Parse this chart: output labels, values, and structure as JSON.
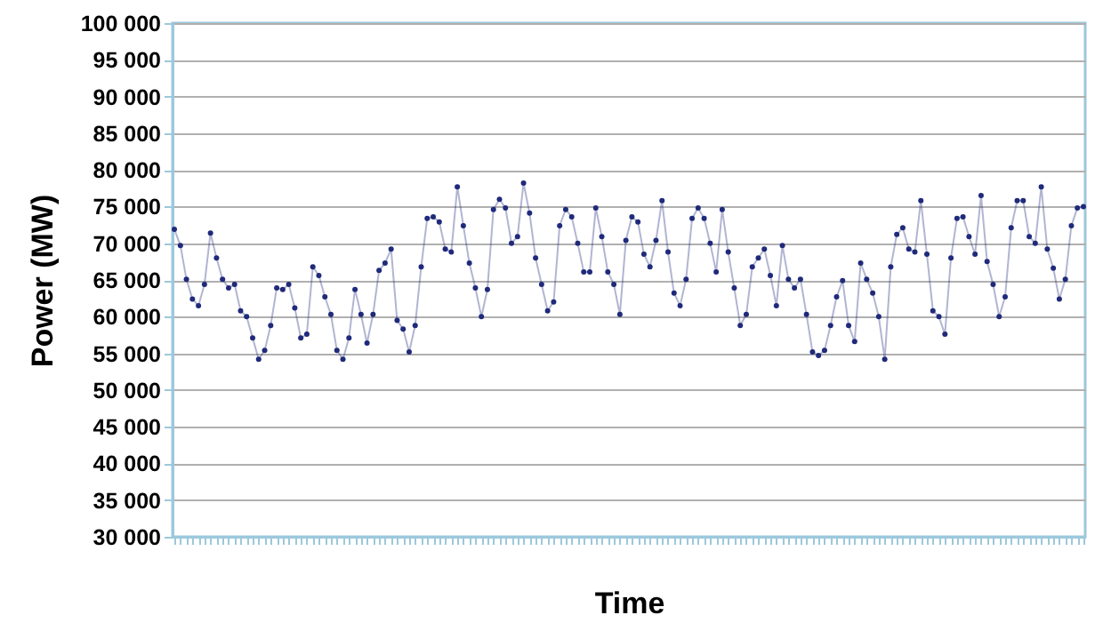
{
  "chart_data": {
    "type": "line",
    "xlabel": "Time",
    "ylabel": "Power (MW)",
    "categories": [
      null,
      null,
      null,
      null,
      null,
      null,
      null,
      null,
      null,
      null,
      null,
      null,
      null,
      null,
      null,
      null,
      null,
      null,
      null,
      null,
      null,
      null,
      null,
      null,
      null,
      null,
      null,
      null,
      null,
      null,
      null,
      null,
      null,
      null,
      null,
      null,
      null,
      null,
      null,
      null,
      null,
      null,
      null,
      null,
      null,
      null,
      null,
      null,
      null,
      null,
      null,
      null,
      null,
      null,
      null,
      null,
      null,
      null,
      null,
      null,
      null,
      null,
      null,
      null,
      null,
      null,
      null,
      null,
      null,
      null,
      null,
      null,
      null,
      null,
      null,
      null,
      null,
      null,
      null,
      null,
      null,
      null,
      null,
      null,
      null,
      null,
      null,
      null,
      null,
      null,
      null,
      null,
      null,
      null,
      null,
      null,
      null,
      null,
      null,
      null,
      null,
      null,
      null,
      null,
      null,
      null,
      null,
      null,
      null,
      null,
      null,
      null,
      null,
      null,
      null,
      null,
      null,
      null,
      null,
      null,
      null,
      null,
      null,
      null,
      null,
      null,
      null,
      null,
      null,
      null,
      null,
      null,
      null,
      null,
      null,
      null,
      null,
      null,
      null,
      null,
      null,
      null,
      null,
      null,
      null,
      null,
      null,
      null,
      null,
      null,
      null,
      null
    ],
    "series": [
      {
        "color": "#1f2a7a",
        "values": [
          71900,
          69700,
          65100,
          62400,
          61500,
          64400,
          71400,
          68000,
          65100,
          63900,
          64400,
          60800,
          60000,
          57100,
          54200,
          55400,
          58800,
          63900,
          63700,
          64400,
          61200,
          57100,
          57600,
          66800,
          65600,
          62700,
          60300,
          55400,
          54200,
          57100,
          63700,
          60300,
          56400,
          60300,
          66300,
          67300,
          69200,
          59500,
          58300,
          55200,
          58800,
          66800,
          73400,
          73600,
          72900,
          69200,
          68800,
          77700,
          72400,
          67300,
          63900,
          60000,
          63700,
          74600,
          76000,
          74800,
          70000,
          70900,
          78200,
          74100,
          68000,
          64400,
          60800,
          62000,
          72400,
          74600,
          73600,
          70000,
          66100,
          66100,
          74800,
          70900,
          66100,
          64400,
          60300,
          70400,
          73600,
          72900,
          68500,
          66800,
          70400,
          75800,
          68800,
          63200,
          61500,
          65100,
          73400,
          74800,
          73400,
          70000,
          66100,
          74600,
          68800,
          63900,
          58800,
          60300,
          66800,
          68000,
          69200,
          65600,
          61500,
          69700,
          65100,
          63900,
          65100,
          60300,
          55200,
          54700,
          55400,
          58800,
          62700,
          64900,
          58800,
          56600,
          67300,
          65100,
          63200,
          60000,
          54200,
          66800,
          71200,
          72100,
          69200,
          68800,
          75800,
          68500,
          60800,
          60000,
          57600,
          68000,
          73400,
          73600,
          70900,
          68500,
          76500,
          67500,
          64400,
          60000,
          62700,
          72100,
          75800,
          75800,
          70900,
          70000,
          77700,
          69200,
          66600,
          62400,
          65100,
          72400,
          74800,
          75000
        ]
      }
    ],
    "ylim": [
      30000,
      100000
    ],
    "yticks": [
      {
        "value": 30000,
        "label": "30 000"
      },
      {
        "value": 35000,
        "label": "35 000"
      },
      {
        "value": 40000,
        "label": "40 000"
      },
      {
        "value": 45000,
        "label": "45 000"
      },
      {
        "value": 50000,
        "label": "50 000"
      },
      {
        "value": 55000,
        "label": "55 000"
      },
      {
        "value": 60000,
        "label": "60 000"
      },
      {
        "value": 65000,
        "label": "65 000"
      },
      {
        "value": 70000,
        "label": "70 000"
      },
      {
        "value": 75000,
        "label": "75 000"
      },
      {
        "value": 80000,
        "label": "80 000"
      },
      {
        "value": 85000,
        "label": "85 000"
      },
      {
        "value": 90000,
        "label": "90 000"
      },
      {
        "value": 95000,
        "label": "95 000"
      },
      {
        "value": 100000,
        "label": "100 000"
      }
    ],
    "grid": "y",
    "tick_labels": "y",
    "marker": "circle",
    "line_style": "solid"
  }
}
